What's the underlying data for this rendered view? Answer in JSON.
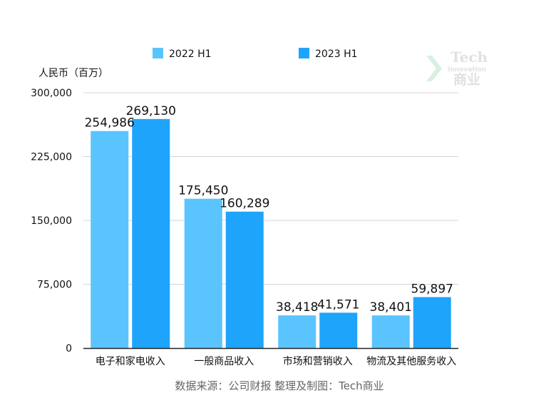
{
  "chart_data": {
    "type": "bar",
    "ylabel": "人民币（百万）",
    "ylim": [
      0,
      300000
    ],
    "yticks": [
      "0",
      "75,000",
      "150,000",
      "225,000",
      "300,000"
    ],
    "ytick_values": [
      0,
      75000,
      150000,
      225000,
      300000
    ],
    "grid": true,
    "legend_position": "top",
    "categories": [
      "电子和家电收入",
      "一般商品收入",
      "市场和营销收入",
      "物流及其他服务收入"
    ],
    "series": [
      {
        "name": "2022 H1",
        "color": "#5ac4fe",
        "values": [
          254986,
          175450,
          38418,
          38401
        ],
        "labels": [
          "254,986",
          "175,450",
          "38,418",
          "38,401"
        ]
      },
      {
        "name": "2023 H1",
        "color": "#1fa4fb",
        "values": [
          269130,
          160289,
          41571,
          59897
        ],
        "labels": [
          "269,130",
          "160,289",
          "41,571",
          "59,897"
        ]
      }
    ]
  },
  "source_note": "数据来源：公司财报 整理及制图：Tech商业",
  "watermark": {
    "line1": "Tech",
    "line2": "Innovation",
    "line3": "商业"
  }
}
